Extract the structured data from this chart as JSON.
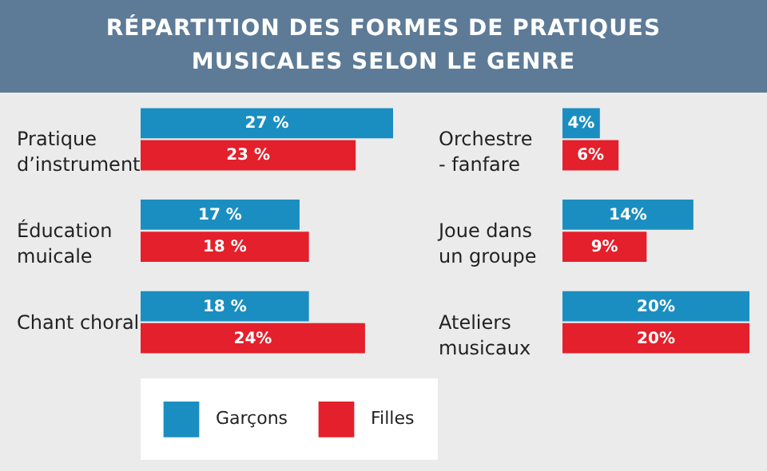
{
  "chart_data": [
    {
      "type": "bar",
      "orientation": "horizontal",
      "title": "RÉPARTITION DES FORMES DE PRATIQUES MUSICALES SELON LE GENRE",
      "categories": [
        "Pratique\nd’instrument",
        "Éducation\nmuicale",
        "Chant choral"
      ],
      "legend": "bottom",
      "series": [
        {
          "name": "Garçons",
          "color": "#1b8ec1",
          "values": [
            27,
            17,
            18
          ],
          "value_labels": [
            "27 %",
            "17 %",
            "18 %"
          ]
        },
        {
          "name": "Filles",
          "color": "#e3202b",
          "values": [
            23,
            18,
            24
          ],
          "value_labels": [
            "23 %",
            "18 %",
            "24%"
          ]
        }
      ]
    },
    {
      "type": "bar",
      "orientation": "horizontal",
      "categories": [
        "Orchestre\n- fanfare",
        "Joue dans\nun groupe",
        "Ateliers\nmusicaux"
      ],
      "series": [
        {
          "color": "#1b8ec1",
          "values": [
            4,
            14,
            20
          ],
          "value_labels": [
            "4%",
            "14%",
            "20%"
          ]
        },
        {
          "color": "#e3202b",
          "values": [
            6,
            9,
            20
          ],
          "value_labels": [
            "6%",
            "9%",
            "20%"
          ]
        }
      ]
    }
  ]
}
